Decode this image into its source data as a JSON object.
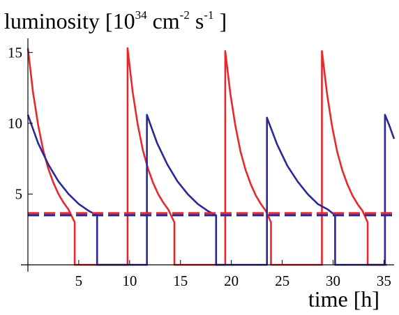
{
  "chart_data": {
    "type": "line",
    "title": {
      "main": "luminosity [10",
      "exp1": "34",
      "unit_cm": " cm",
      "exp2": "-2",
      "unit_s": " s",
      "exp3": "-1",
      "close": " ]"
    },
    "xlabel": "time [h]",
    "xlim": [
      0,
      36
    ],
    "ylim": [
      0,
      16
    ],
    "x_ticks": [
      5,
      10,
      15,
      20,
      25,
      30,
      35
    ],
    "x_tick_labels": [
      "5",
      "10",
      "15",
      "20",
      "25",
      "30",
      "35"
    ],
    "y_ticks": [
      5,
      10,
      15
    ],
    "y_tick_labels": [
      "5",
      "10",
      "15"
    ],
    "grid": false,
    "series": [
      {
        "color": "#e8282b",
        "style": "solid",
        "points": [
          [
            0,
            15.3
          ],
          [
            0.5,
            12.2
          ],
          [
            1,
            9.9
          ],
          [
            1.5,
            8.1
          ],
          [
            2,
            6.8
          ],
          [
            2.5,
            5.8
          ],
          [
            3,
            5.0
          ],
          [
            3.5,
            4.4
          ],
          [
            4,
            3.9
          ],
          [
            4.6,
            3.0
          ],
          [
            4.6,
            0
          ],
          [
            9.8,
            0
          ],
          [
            9.8,
            15.3
          ],
          [
            10.3,
            12.2
          ],
          [
            10.8,
            9.9
          ],
          [
            11.3,
            8.1
          ],
          [
            11.8,
            6.8
          ],
          [
            12.3,
            5.8
          ],
          [
            12.8,
            5.0
          ],
          [
            13.3,
            4.4
          ],
          [
            13.8,
            3.9
          ],
          [
            14.4,
            3.0
          ],
          [
            14.4,
            0
          ],
          [
            19.4,
            0
          ],
          [
            19.4,
            15.1
          ],
          [
            19.9,
            12.1
          ],
          [
            20.4,
            9.8
          ],
          [
            20.9,
            8.0
          ],
          [
            21.4,
            6.7
          ],
          [
            21.9,
            5.7
          ],
          [
            22.4,
            4.9
          ],
          [
            22.9,
            4.3
          ],
          [
            23.4,
            3.8
          ],
          [
            23.9,
            3.0
          ],
          [
            23.9,
            0
          ],
          [
            28.9,
            0
          ],
          [
            28.9,
            15.1
          ],
          [
            29.4,
            12.1
          ],
          [
            29.9,
            9.8
          ],
          [
            30.4,
            8.0
          ],
          [
            30.9,
            6.7
          ],
          [
            31.4,
            5.7
          ],
          [
            31.9,
            4.9
          ],
          [
            32.4,
            4.3
          ],
          [
            32.9,
            3.8
          ],
          [
            33.4,
            3.0
          ],
          [
            33.4,
            0
          ],
          [
            35.3,
            0
          ]
        ]
      },
      {
        "color": "#28289a",
        "style": "solid",
        "points": [
          [
            0,
            10.6
          ],
          [
            1,
            8.6
          ],
          [
            2,
            7.1
          ],
          [
            3,
            5.9
          ],
          [
            4,
            5.0
          ],
          [
            5,
            4.3
          ],
          [
            6,
            3.8
          ],
          [
            6.8,
            3.5
          ],
          [
            6.8,
            0
          ],
          [
            11.7,
            0
          ],
          [
            11.7,
            10.6
          ],
          [
            12.7,
            8.6
          ],
          [
            13.7,
            7.1
          ],
          [
            14.7,
            5.9
          ],
          [
            15.7,
            5.0
          ],
          [
            16.7,
            4.3
          ],
          [
            17.7,
            3.8
          ],
          [
            18.5,
            3.5
          ],
          [
            18.5,
            0
          ],
          [
            23.5,
            0
          ],
          [
            23.5,
            10.4
          ],
          [
            24.5,
            8.5
          ],
          [
            25.5,
            7.0
          ],
          [
            26.5,
            5.9
          ],
          [
            27.5,
            5.0
          ],
          [
            28.5,
            4.3
          ],
          [
            29.5,
            3.9
          ],
          [
            30.2,
            3.5
          ],
          [
            30.2,
            0
          ],
          [
            35.1,
            0
          ],
          [
            35.1,
            10.6
          ],
          [
            35.5,
            9.9
          ],
          [
            36,
            8.9
          ]
        ]
      },
      {
        "color": "#e8282b",
        "style": "dashed",
        "points": [
          [
            0,
            3.65
          ],
          [
            36,
            3.65
          ]
        ]
      },
      {
        "color": "#28289a",
        "style": "dashed",
        "points": [
          [
            0,
            3.5
          ],
          [
            36,
            3.5
          ]
        ]
      }
    ]
  }
}
